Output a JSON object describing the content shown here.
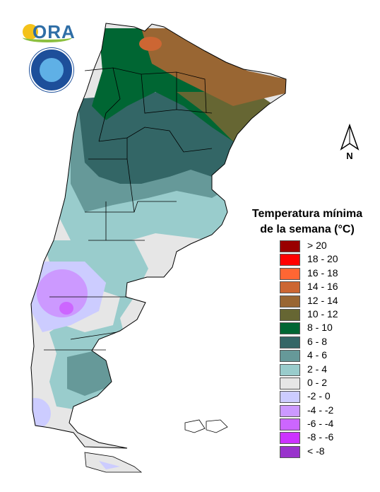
{
  "legend": {
    "title_line1": "Temperatura mínima",
    "title_line2": "de la semana (°C)",
    "classes": [
      {
        "label": "> 20",
        "color": "#990000"
      },
      {
        "label": "18 - 20",
        "color": "#ff0000"
      },
      {
        "label": "16 - 18",
        "color": "#ff6633"
      },
      {
        "label": "14 - 16",
        "color": "#cc6633"
      },
      {
        "label": "12 - 14",
        "color": "#996633"
      },
      {
        "label": "10 - 12",
        "color": "#666633"
      },
      {
        "label": "8 - 10",
        "color": "#006633"
      },
      {
        "label": "6 - 8",
        "color": "#336666"
      },
      {
        "label": "4 - 6",
        "color": "#669999"
      },
      {
        "label": "2 - 4",
        "color": "#99cccc"
      },
      {
        "label": "0 - 2",
        "color": "#e6e6e6"
      },
      {
        "label": "-2 - 0",
        "color": "#ccccff"
      },
      {
        "label": "-4 - -2",
        "color": "#cc99ff"
      },
      {
        "label": "-6 - -4",
        "color": "#cc66ff"
      },
      {
        "label": "-8 - -6",
        "color": "#cc33ff"
      },
      {
        "label": "< -8",
        "color": "#9933cc"
      }
    ]
  },
  "north_arrow": {
    "label": "N"
  },
  "logos": {
    "ora_text": "ORA",
    "smn_icon": "smn-emblem"
  }
}
